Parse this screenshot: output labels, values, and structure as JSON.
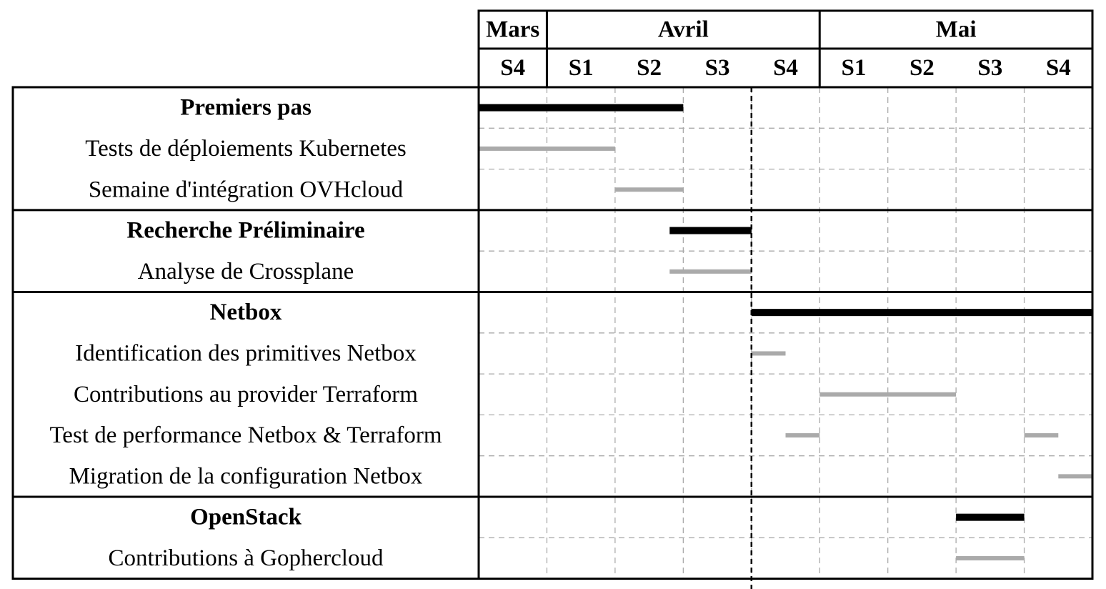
{
  "chart_data": {
    "type": "gantt",
    "months": [
      {
        "label": "Mars",
        "weeks": 1
      },
      {
        "label": "Avril",
        "weeks": 4
      },
      {
        "label": "Mai",
        "weeks": 4
      }
    ],
    "weeks": [
      "S4",
      "S1",
      "S2",
      "S3",
      "S4",
      "S1",
      "S2",
      "S3",
      "S4"
    ],
    "marker_week": 4,
    "groups": [
      {
        "name": "Premiers pas",
        "span": [
          0,
          3
        ],
        "tasks": [
          {
            "name": "Tests de déploiements Kubernetes",
            "spans": [
              [
                0,
                2
              ]
            ]
          },
          {
            "name": "Semaine d'intégration OVHcloud",
            "spans": [
              [
                2,
                3
              ]
            ]
          }
        ]
      },
      {
        "name": "Recherche Préliminaire",
        "span": [
          2.8,
          4
        ],
        "tasks": [
          {
            "name": "Analyse de Crossplane",
            "spans": [
              [
                2.8,
                4
              ]
            ]
          }
        ]
      },
      {
        "name": "Netbox",
        "span": [
          4,
          9
        ],
        "tasks": [
          {
            "name": "Identification des primitives Netbox",
            "spans": [
              [
                4,
                4.5
              ]
            ]
          },
          {
            "name": "Contributions au provider Terraform",
            "spans": [
              [
                5,
                7
              ]
            ]
          },
          {
            "name": "Test de performance Netbox & Terraform",
            "spans": [
              [
                4.5,
                5
              ],
              [
                8,
                8.5
              ]
            ]
          },
          {
            "name": "Migration de la configuration Netbox",
            "spans": [
              [
                8.5,
                9
              ]
            ]
          }
        ]
      },
      {
        "name": "OpenStack",
        "span": [
          7,
          8
        ],
        "tasks": [
          {
            "name": "Contributions à Gophercloud",
            "spans": [
              [
                7,
                8
              ]
            ]
          }
        ]
      }
    ],
    "colors": {
      "group_bar": "#000000",
      "task_bar": "#aaaaaa",
      "grid": "#aaaaaa"
    }
  }
}
